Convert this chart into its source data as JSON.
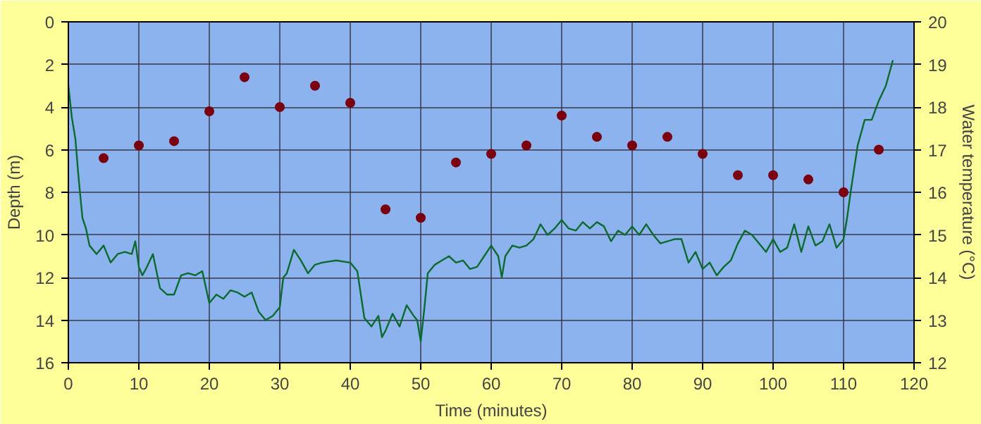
{
  "chart_data": {
    "type": "line",
    "xlabel": "Time (minutes)",
    "ylabel": "Depth (m)",
    "y2label": "Water temperature (°C)",
    "xlim": [
      0,
      120
    ],
    "xticks": [
      0,
      10,
      20,
      30,
      40,
      50,
      60,
      70,
      80,
      90,
      100,
      110,
      120
    ],
    "ylim": [
      16,
      0
    ],
    "yticks": [
      0,
      2,
      4,
      6,
      8,
      10,
      12,
      14,
      16
    ],
    "y2lim": [
      12,
      20
    ],
    "y2ticks": [
      12,
      13,
      14,
      15,
      16,
      17,
      18,
      19,
      20
    ],
    "grid": true,
    "series": [
      {
        "color": "#0b6b2e",
        "x": [
          0,
          0.5,
          1,
          1.5,
          2,
          2.5,
          3,
          4,
          5,
          6,
          7,
          8,
          9,
          9.5,
          10,
          10.5,
          11,
          12,
          12.5,
          13,
          14,
          15,
          16,
          17,
          18,
          19,
          20,
          21,
          22,
          23,
          24,
          25,
          26,
          27,
          28,
          29,
          30,
          30.5,
          31,
          32,
          33,
          34,
          35,
          36,
          38,
          40,
          41,
          42,
          43,
          44,
          44.5,
          45,
          46,
          47,
          48,
          49,
          49.5,
          50,
          50.5,
          51,
          52,
          53,
          54,
          55,
          56,
          57,
          58,
          59,
          60,
          61,
          61.5,
          62,
          63,
          64,
          65,
          66,
          67,
          68,
          69,
          70,
          71,
          72,
          73,
          74,
          75,
          76,
          77,
          78,
          79,
          80,
          81,
          82,
          83,
          84,
          85,
          86,
          87,
          88,
          89,
          90,
          91,
          92,
          93,
          94,
          95,
          96,
          97,
          98,
          99,
          100,
          101,
          102,
          103,
          104,
          105,
          106,
          107,
          108,
          109,
          110,
          110.5,
          111,
          112,
          113,
          114,
          115,
          116,
          117
        ],
        "values": [
          3.0,
          4.5,
          5.5,
          7.5,
          9.2,
          9.7,
          10.5,
          10.9,
          10.5,
          11.3,
          10.9,
          10.8,
          10.9,
          10.3,
          11.5,
          11.9,
          11.6,
          10.9,
          11.7,
          12.5,
          12.8,
          12.8,
          11.9,
          11.8,
          11.9,
          11.7,
          13.2,
          12.8,
          13.0,
          12.6,
          12.7,
          12.9,
          12.7,
          13.6,
          14.0,
          13.8,
          13.4,
          12.0,
          11.8,
          10.7,
          11.2,
          11.8,
          11.4,
          11.3,
          11.2,
          11.3,
          11.7,
          13.9,
          14.3,
          13.8,
          14.8,
          14.5,
          13.7,
          14.3,
          13.3,
          13.8,
          14.0,
          15.0,
          13.5,
          11.8,
          11.4,
          11.2,
          11.0,
          11.3,
          11.2,
          11.6,
          11.5,
          11.0,
          10.5,
          11.0,
          12.0,
          11.0,
          10.5,
          10.6,
          10.5,
          10.2,
          9.5,
          10.0,
          9.7,
          9.3,
          9.7,
          9.8,
          9.4,
          9.7,
          9.4,
          9.6,
          10.3,
          9.8,
          10.0,
          9.6,
          10.0,
          9.5,
          10.0,
          10.4,
          10.3,
          10.2,
          10.2,
          11.3,
          10.8,
          11.6,
          11.3,
          11.9,
          11.5,
          11.2,
          10.4,
          9.8,
          10.0,
          10.4,
          10.8,
          10.2,
          10.8,
          10.6,
          9.5,
          10.8,
          9.6,
          10.5,
          10.3,
          9.5,
          10.6,
          10.2,
          9.2,
          8.0,
          5.8,
          4.6,
          4.6,
          3.7,
          3.0,
          1.8
        ]
      },
      {
        "type": "scatter",
        "axis": "y2",
        "color": "#7a0010",
        "marker": "circle",
        "x": [
          5,
          10,
          15,
          20,
          25,
          30,
          35,
          40,
          45,
          50,
          55,
          60,
          65,
          70,
          75,
          80,
          85,
          90,
          95,
          100,
          105,
          110,
          115
        ],
        "values": [
          16.8,
          17.1,
          17.2,
          17.9,
          18.7,
          18.0,
          18.5,
          18.1,
          15.6,
          15.4,
          16.7,
          16.9,
          17.1,
          17.8,
          17.3,
          17.1,
          17.3,
          16.9,
          16.4,
          16.4,
          16.3,
          16.0,
          17.0
        ]
      }
    ]
  }
}
